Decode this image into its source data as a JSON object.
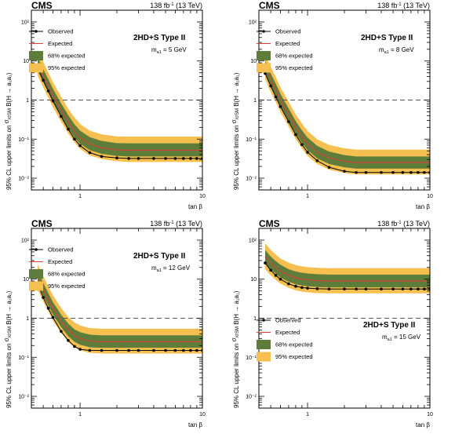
{
  "colors": {
    "band95": "#f5c04f",
    "band68": "#5e7d3a",
    "expected": "#e0403a",
    "observed": "#000000",
    "reference_line": "#555555"
  },
  "chart_data": [
    {
      "type": "line",
      "experiment": "CMS",
      "lumi": "138 fb",
      "lumi_sup": "-1",
      "energy": "(13 TeV)",
      "model": "2HD+S Type II",
      "mass_label": "m",
      "mass_sub": "a1",
      "mass_value": "= 5 GeV",
      "xlabel": "tan β",
      "ylabel": "95% CL upper limits on",
      "ylabel_sigma": "σ",
      "ylabel_sm": "σSM",
      "ylabel_br": "B(H → a₁a₁)",
      "xscale": "log",
      "yscale": "log",
      "xlim": [
        0.4,
        10
      ],
      "ylim": [
        0.005,
        200
      ],
      "x_ticks": [
        "1",
        "10"
      ],
      "y_ticks": [
        "10⁻²",
        "10⁻¹",
        "1",
        "10",
        "10²"
      ],
      "reference_y": 1,
      "legend_position": "top-left",
      "legend": [
        "Observed",
        "Expected",
        "68% expected",
        "95% expected"
      ],
      "x": [
        0.45,
        0.5,
        0.55,
        0.6,
        0.7,
        0.8,
        0.9,
        1.0,
        1.2,
        1.5,
        2.0,
        2.5,
        3.0,
        4.0,
        5.0,
        6.0,
        7.0,
        8.0,
        9.0,
        10.0
      ],
      "expected": [
        8.5,
        4.2,
        2.3,
        1.3,
        0.55,
        0.27,
        0.16,
        0.11,
        0.075,
        0.06,
        0.053,
        0.052,
        0.052,
        0.052,
        0.052,
        0.052,
        0.052,
        0.052,
        0.052,
        0.052
      ],
      "observed": [
        6.5,
        3.2,
        1.7,
        0.95,
        0.38,
        0.18,
        0.1,
        0.068,
        0.045,
        0.036,
        0.033,
        0.032,
        0.032,
        0.032,
        0.032,
        0.032,
        0.032,
        0.032,
        0.032,
        0.032
      ],
      "band68": [
        [
          5.8,
          12.5
        ],
        [
          2.9,
          6.2
        ],
        [
          1.6,
          3.4
        ],
        [
          0.9,
          1.95
        ],
        [
          0.38,
          0.82
        ],
        [
          0.19,
          0.41
        ],
        [
          0.11,
          0.24
        ],
        [
          0.076,
          0.165
        ],
        [
          0.052,
          0.112
        ],
        [
          0.042,
          0.09
        ],
        [
          0.037,
          0.079
        ],
        [
          0.036,
          0.078
        ],
        [
          0.036,
          0.078
        ],
        [
          0.036,
          0.078
        ],
        [
          0.036,
          0.078
        ],
        [
          0.036,
          0.078
        ],
        [
          0.036,
          0.078
        ],
        [
          0.036,
          0.078
        ],
        [
          0.036,
          0.078
        ],
        [
          0.036,
          0.078
        ]
      ],
      "band95": [
        [
          4.2,
          19
        ],
        [
          2.1,
          9.4
        ],
        [
          1.15,
          5.1
        ],
        [
          0.65,
          2.9
        ],
        [
          0.28,
          1.22
        ],
        [
          0.14,
          0.6
        ],
        [
          0.082,
          0.36
        ],
        [
          0.056,
          0.245
        ],
        [
          0.038,
          0.165
        ],
        [
          0.031,
          0.133
        ],
        [
          0.027,
          0.117
        ],
        [
          0.026,
          0.116
        ],
        [
          0.026,
          0.116
        ],
        [
          0.026,
          0.116
        ],
        [
          0.026,
          0.116
        ],
        [
          0.026,
          0.116
        ],
        [
          0.026,
          0.116
        ],
        [
          0.026,
          0.116
        ],
        [
          0.026,
          0.116
        ],
        [
          0.026,
          0.116
        ]
      ]
    },
    {
      "type": "line",
      "experiment": "CMS",
      "lumi": "138 fb",
      "lumi_sup": "-1",
      "energy": "(13 TeV)",
      "model": "2HD+S Type II",
      "mass_label": "m",
      "mass_sub": "a1",
      "mass_value": "= 8 GeV",
      "xlabel": "tan β",
      "ylabel": "95% CL upper limits on",
      "ylabel_sigma": "σ",
      "ylabel_sm": "σSM",
      "ylabel_br": "B(H → a₁a₁)",
      "xscale": "log",
      "yscale": "log",
      "xlim": [
        0.4,
        10
      ],
      "ylim": [
        0.005,
        200
      ],
      "x_ticks": [
        "1",
        "10"
      ],
      "y_ticks": [
        "10⁻²",
        "10⁻¹",
        "1",
        "10",
        "10²"
      ],
      "reference_y": 1,
      "legend_position": "top-left",
      "legend": [
        "Observed",
        "Expected",
        "68% expected",
        "95% expected"
      ],
      "x": [
        0.45,
        0.5,
        0.55,
        0.6,
        0.7,
        0.8,
        0.9,
        1.0,
        1.2,
        1.5,
        2.0,
        2.5,
        3.0,
        4.0,
        5.0,
        6.0,
        7.0,
        8.0,
        9.0,
        10.0
      ],
      "expected": [
        7.0,
        3.3,
        1.8,
        1.0,
        0.42,
        0.2,
        0.115,
        0.075,
        0.046,
        0.033,
        0.027,
        0.025,
        0.025,
        0.025,
        0.025,
        0.025,
        0.025,
        0.025,
        0.025,
        0.025
      ],
      "observed": [
        4.8,
        2.3,
        1.2,
        0.68,
        0.28,
        0.13,
        0.072,
        0.046,
        0.028,
        0.019,
        0.015,
        0.014,
        0.014,
        0.014,
        0.014,
        0.014,
        0.014,
        0.014,
        0.014,
        0.014
      ],
      "band68": [
        [
          4.8,
          10.2
        ],
        [
          2.3,
          4.8
        ],
        [
          1.25,
          2.6
        ],
        [
          0.7,
          1.45
        ],
        [
          0.29,
          0.61
        ],
        [
          0.14,
          0.29
        ],
        [
          0.08,
          0.167
        ],
        [
          0.052,
          0.109
        ],
        [
          0.032,
          0.067
        ],
        [
          0.023,
          0.048
        ],
        [
          0.019,
          0.039
        ],
        [
          0.0175,
          0.036
        ],
        [
          0.0175,
          0.036
        ],
        [
          0.0175,
          0.036
        ],
        [
          0.0175,
          0.036
        ],
        [
          0.0175,
          0.036
        ],
        [
          0.0175,
          0.036
        ],
        [
          0.0175,
          0.036
        ],
        [
          0.0175,
          0.036
        ],
        [
          0.0175,
          0.036
        ]
      ],
      "band95": [
        [
          3.4,
          15
        ],
        [
          1.6,
          7.1
        ],
        [
          0.88,
          3.9
        ],
        [
          0.49,
          2.15
        ],
        [
          0.21,
          0.9
        ],
        [
          0.1,
          0.43
        ],
        [
          0.057,
          0.25
        ],
        [
          0.037,
          0.162
        ],
        [
          0.023,
          0.099
        ],
        [
          0.0165,
          0.071
        ],
        [
          0.0135,
          0.058
        ],
        [
          0.0125,
          0.054
        ],
        [
          0.0125,
          0.054
        ],
        [
          0.0125,
          0.054
        ],
        [
          0.0125,
          0.054
        ],
        [
          0.0125,
          0.054
        ],
        [
          0.0125,
          0.054
        ],
        [
          0.0125,
          0.054
        ],
        [
          0.0125,
          0.054
        ],
        [
          0.0125,
          0.054
        ]
      ]
    },
    {
      "type": "line",
      "experiment": "CMS",
      "lumi": "138 fb",
      "lumi_sup": "-1",
      "energy": "(13 TeV)",
      "model": "2HD+S Type II",
      "mass_label": "m",
      "mass_sub": "a1",
      "mass_value": "= 12 GeV",
      "xlabel": "tan β",
      "ylabel": "95% CL upper limits on",
      "ylabel_sigma": "σ",
      "ylabel_sm": "σSM",
      "ylabel_br": "B(H → a₁a₁)",
      "xscale": "log",
      "yscale": "log",
      "xlim": [
        0.4,
        10
      ],
      "ylim": [
        0.005,
        200
      ],
      "x_ticks": [
        "1",
        "10"
      ],
      "y_ticks": [
        "10⁻²",
        "10⁻¹",
        "1",
        "10",
        "10²"
      ],
      "reference_y": 1,
      "legend_position": "top-left",
      "legend": [
        "Observed",
        "Expected",
        "68% expected",
        "95% expected"
      ],
      "x": [
        0.45,
        0.5,
        0.55,
        0.6,
        0.7,
        0.8,
        0.9,
        1.0,
        1.2,
        1.5,
        2.0,
        2.5,
        3.0,
        4.0,
        5.0,
        6.0,
        7.0,
        8.0,
        9.0,
        10.0
      ],
      "expected": [
        11,
        5.5,
        3.0,
        1.8,
        0.85,
        0.5,
        0.36,
        0.3,
        0.26,
        0.25,
        0.25,
        0.25,
        0.25,
        0.25,
        0.25,
        0.25,
        0.25,
        0.25,
        0.25,
        0.25
      ],
      "observed": [
        7.5,
        3.4,
        1.8,
        1.05,
        0.46,
        0.27,
        0.19,
        0.16,
        0.15,
        0.15,
        0.15,
        0.15,
        0.15,
        0.15,
        0.15,
        0.15,
        0.15,
        0.15,
        0.15,
        0.15
      ],
      "band68": [
        [
          7.6,
          16
        ],
        [
          3.8,
          8.0
        ],
        [
          2.1,
          4.4
        ],
        [
          1.25,
          2.6
        ],
        [
          0.59,
          1.24
        ],
        [
          0.35,
          0.73
        ],
        [
          0.25,
          0.52
        ],
        [
          0.21,
          0.44
        ],
        [
          0.18,
          0.38
        ],
        [
          0.175,
          0.365
        ],
        [
          0.175,
          0.365
        ],
        [
          0.175,
          0.365
        ],
        [
          0.175,
          0.365
        ],
        [
          0.175,
          0.365
        ],
        [
          0.175,
          0.365
        ],
        [
          0.175,
          0.365
        ],
        [
          0.175,
          0.365
        ],
        [
          0.175,
          0.365
        ],
        [
          0.175,
          0.365
        ],
        [
          0.175,
          0.365
        ]
      ],
      "band95": [
        [
          5.4,
          24
        ],
        [
          2.7,
          12
        ],
        [
          1.5,
          6.5
        ],
        [
          0.88,
          3.9
        ],
        [
          0.42,
          1.85
        ],
        [
          0.25,
          1.08
        ],
        [
          0.18,
          0.78
        ],
        [
          0.15,
          0.65
        ],
        [
          0.13,
          0.56
        ],
        [
          0.125,
          0.54
        ],
        [
          0.125,
          0.54
        ],
        [
          0.125,
          0.54
        ],
        [
          0.125,
          0.54
        ],
        [
          0.125,
          0.54
        ],
        [
          0.125,
          0.54
        ],
        [
          0.125,
          0.54
        ],
        [
          0.125,
          0.54
        ],
        [
          0.125,
          0.54
        ],
        [
          0.125,
          0.54
        ],
        [
          0.125,
          0.54
        ]
      ]
    },
    {
      "type": "line",
      "experiment": "CMS",
      "lumi": "138 fb",
      "lumi_sup": "-1",
      "energy": "(13 TeV)",
      "model": "2HD+S Type II",
      "mass_label": "m",
      "mass_sub": "a1",
      "mass_value": "= 15 GeV",
      "xlabel": "tan β",
      "ylabel": "95% CL upper limits on",
      "ylabel_sigma": "σ",
      "ylabel_sm": "σSM",
      "ylabel_br": "B(H → a₁a₁)",
      "xscale": "log",
      "yscale": "log",
      "xlim": [
        0.4,
        10
      ],
      "ylim": [
        0.005,
        200
      ],
      "x_ticks": [
        "1",
        "10"
      ],
      "y_ticks": [
        "10⁻²",
        "10⁻¹",
        "1",
        "10",
        "10²"
      ],
      "reference_y": 1,
      "legend_position": "bottom-left",
      "legend": [
        "Observed",
        "Expected",
        "68% expected",
        "95% expected"
      ],
      "x": [
        0.45,
        0.5,
        0.55,
        0.6,
        0.7,
        0.8,
        0.9,
        1.0,
        1.2,
        1.5,
        2.0,
        2.5,
        3.0,
        4.0,
        5.0,
        6.0,
        7.0,
        8.0,
        9.0,
        10.0
      ],
      "expected": [
        38,
        26,
        20,
        16,
        12.5,
        10.8,
        10.0,
        9.6,
        9.2,
        9.0,
        9.0,
        9.0,
        9.0,
        9.0,
        9.0,
        9.0,
        9.0,
        9.0,
        9.0,
        9.0
      ],
      "observed": [
        26,
        17,
        12.5,
        10,
        7.6,
        6.6,
        6.1,
        5.9,
        5.7,
        5.6,
        5.6,
        5.6,
        5.6,
        5.6,
        5.6,
        5.6,
        5.6,
        5.6,
        5.6,
        5.6
      ],
      "band68": [
        [
          26,
          56
        ],
        [
          18,
          38
        ],
        [
          13.8,
          29
        ],
        [
          11,
          23.5
        ],
        [
          8.6,
          18
        ],
        [
          7.4,
          15.8
        ],
        [
          6.9,
          14.6
        ],
        [
          6.6,
          14
        ],
        [
          6.3,
          13.4
        ],
        [
          6.2,
          13.1
        ],
        [
          6.2,
          13.1
        ],
        [
          6.2,
          13.1
        ],
        [
          6.2,
          13.1
        ],
        [
          6.2,
          13.1
        ],
        [
          6.2,
          13.1
        ],
        [
          6.2,
          13.1
        ],
        [
          6.2,
          13.1
        ],
        [
          6.2,
          13.1
        ],
        [
          6.2,
          13.1
        ],
        [
          6.2,
          13.1
        ]
      ],
      "band95": [
        [
          18,
          82
        ],
        [
          12.5,
          56
        ],
        [
          9.6,
          43
        ],
        [
          7.7,
          34
        ],
        [
          6.0,
          26.5
        ],
        [
          5.2,
          23
        ],
        [
          4.8,
          21.3
        ],
        [
          4.6,
          20.4
        ],
        [
          4.4,
          19.6
        ],
        [
          4.35,
          19.2
        ],
        [
          4.35,
          19.2
        ],
        [
          4.35,
          19.2
        ],
        [
          4.35,
          19.2
        ],
        [
          4.35,
          19.2
        ],
        [
          4.35,
          19.2
        ],
        [
          4.35,
          19.2
        ],
        [
          4.35,
          19.2
        ],
        [
          4.35,
          19.2
        ],
        [
          4.35,
          19.2
        ],
        [
          4.35,
          19.2
        ]
      ]
    }
  ]
}
